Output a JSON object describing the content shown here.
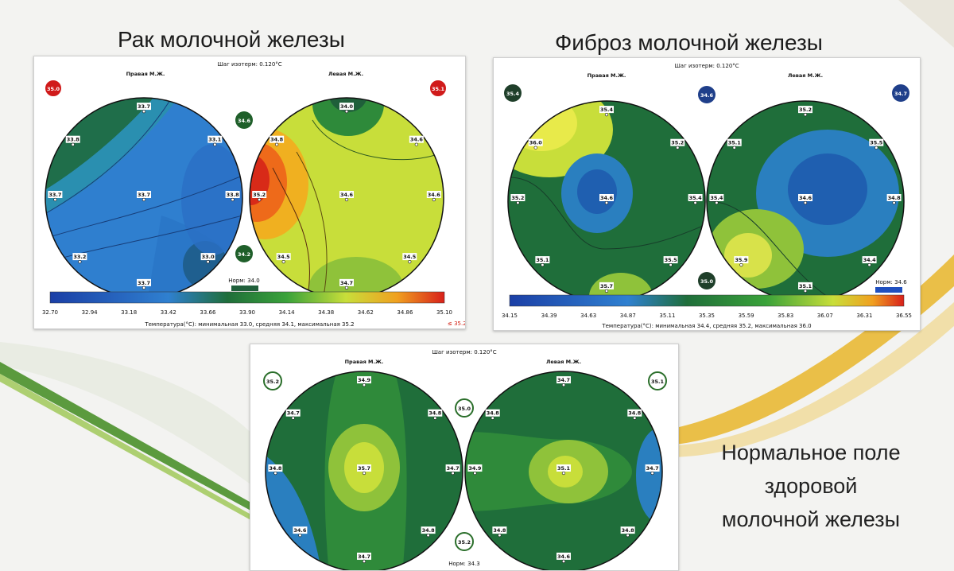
{
  "titles": {
    "cancer": "Рак молочной железы",
    "fibrosis": "Фиброз молочной железы",
    "normal": [
      "Нормальное поле",
      "здоровой",
      "молочной железы"
    ]
  },
  "colors": {
    "background": "#f3f3f1",
    "deco_green": "#3f8a1f",
    "deco_yellow": "#e8b52a",
    "contour_low": "#1f4fbf",
    "contour_mid": "#2d7a3a",
    "contour_high": "#d21e12"
  },
  "panels": [
    {
      "id": "cancer",
      "step": "Шаг изотерм: 0.120°С",
      "right_label": "Правая М.Ж.",
      "left_label": "Левая М.Ж.",
      "badge_right": "35.0",
      "badge_left": "35.1",
      "badge_mid_top": "34.6",
      "badge_mid_bottom": "34.2",
      "norm": "Норм: 34.0",
      "scale": [
        "32.70",
        "32.94",
        "33.18",
        "33.42",
        "33.66",
        "33.90",
        "34.14",
        "34.38",
        "34.62",
        "34.86",
        "35.10"
      ],
      "scale_extra": "≤ 35.20",
      "footer": "Температура(°С): минимальная  33.0,  средняя  34.1,  максимальная  35.2",
      "right_points": [
        "33.7",
        "33.8",
        "33.1",
        "33.7",
        "33.7",
        "33.8",
        "33.2",
        "33.0",
        "33.7"
      ],
      "left_points": [
        "34.0",
        "34.8",
        "34.6",
        "35.2",
        "34.6",
        "34.6",
        "34.5",
        "34.5",
        "34.7"
      ]
    },
    {
      "id": "fibrosis",
      "step": "Шаг изотерм: 0.120°С",
      "right_label": "Правая М.Ж.",
      "left_label": "Левая М.Ж.",
      "badge_right": "35.4",
      "badge_left": "34.7",
      "badge_mid_top": "34.6",
      "badge_mid_bottom": "35.0",
      "norm": "Норм: 34.6",
      "scale": [
        "34.15",
        "34.39",
        "34.63",
        "34.87",
        "35.11",
        "35.35",
        "35.59",
        "35.83",
        "36.07",
        "36.31",
        "36.55"
      ],
      "scale_extra": "",
      "footer": "Температура(°С): минимальная  34.4,  средняя  35.2,  максимальная  36.0",
      "right_points": [
        "35.4",
        "36.0",
        "35.2",
        "35.2",
        "34.6",
        "35.4",
        "35.1",
        "35.5",
        "35.7"
      ],
      "left_points": [
        "35.2",
        "35.1",
        "35.5",
        "35.4",
        "34.6",
        "34.8",
        "35.9",
        "34.4",
        "35.1"
      ]
    },
    {
      "id": "normal",
      "step": "Шаг изотерм: 0.120°С",
      "right_label": "Правая М.Ж.",
      "left_label": "Левая М.Ж.",
      "badge_right": "35.2",
      "badge_left": "35.1",
      "badge_mid_top": "35.0",
      "badge_mid_bottom": "35.2",
      "norm": "Норм: 34.3",
      "right_points": [
        "34.9",
        "34.7",
        "34.8",
        "34.8",
        "35.7",
        "34.7",
        "34.6",
        "34.8",
        "34.7"
      ],
      "left_points": [
        "34.7",
        "34.8",
        "34.8",
        "34.9",
        "35.1",
        "34.7",
        "34.8",
        "34.8",
        "34.6"
      ]
    }
  ]
}
